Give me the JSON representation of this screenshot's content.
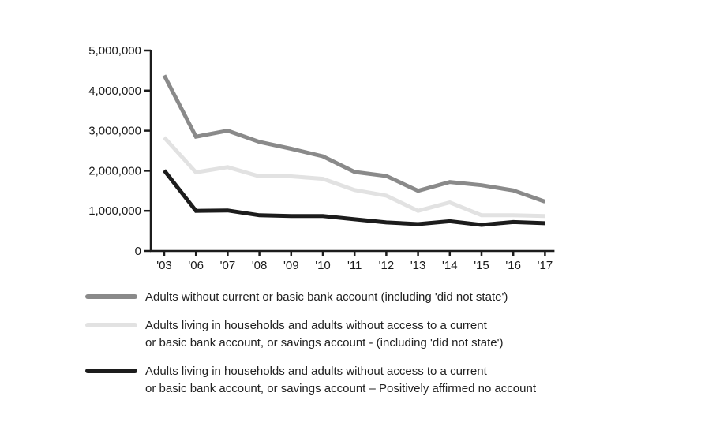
{
  "chart_data": {
    "type": "line",
    "categories": [
      "'03",
      "'06",
      "'07",
      "'08",
      "'09",
      "'10",
      "'11",
      "'12",
      "'13",
      "'14",
      "'15",
      "'16",
      "'17"
    ],
    "y_ticks": [
      "0",
      "1,000,000",
      "2,000,000",
      "3,000,000",
      "4,000,000",
      "5,000,000"
    ],
    "ylim": [
      0,
      5000000
    ],
    "legend_position": "bottom",
    "series": [
      {
        "color": "#8a8a8a",
        "legend_lines": [
          "Adults without current or basic bank account (including 'did not state')"
        ],
        "values": [
          4380000,
          2850000,
          3000000,
          2720000,
          2550000,
          2360000,
          1970000,
          1870000,
          1500000,
          1720000,
          1640000,
          1510000,
          1230000
        ]
      },
      {
        "color": "#e2e2e2",
        "legend_lines": [
          "Adults living in households and adults without access to a current",
          "or basic bank account, or savings account - (including 'did not state')"
        ],
        "values": [
          2830000,
          1960000,
          2090000,
          1860000,
          1860000,
          1800000,
          1520000,
          1380000,
          1000000,
          1210000,
          890000,
          890000,
          870000
        ]
      },
      {
        "color": "#1c1c1c",
        "legend_lines": [
          "Adults living in households and adults without access to a current",
          "or basic bank account, or savings account – Positively affirmed no account"
        ],
        "values": [
          2010000,
          1000000,
          1010000,
          890000,
          870000,
          870000,
          790000,
          710000,
          670000,
          740000,
          650000,
          720000,
          690000
        ]
      }
    ]
  }
}
